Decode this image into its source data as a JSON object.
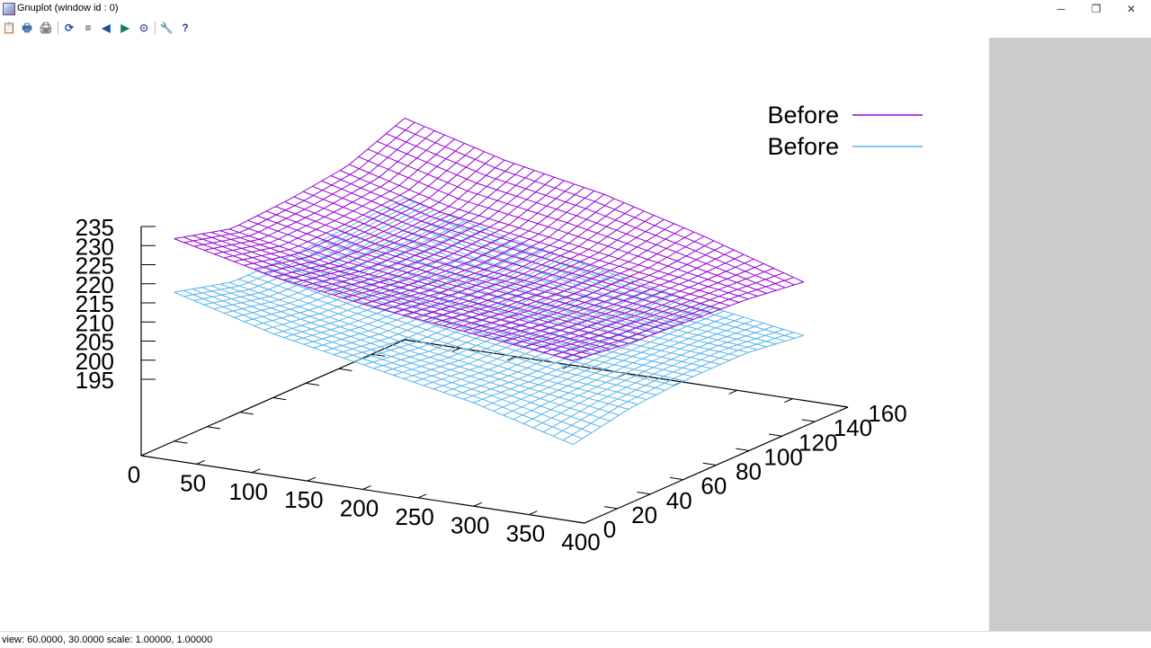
{
  "window": {
    "title": "Gnuplot (window id : 0)",
    "minimize": "─",
    "restore": "❐",
    "close": "✕"
  },
  "toolbar": [
    {
      "icon": "clipboard-icon",
      "glyph": "📋"
    },
    {
      "icon": "print-preview-icon",
      "glyph": "🖶"
    },
    {
      "icon": "print-icon",
      "glyph": "🖨"
    },
    {
      "icon": "replot-icon",
      "glyph": "⟳"
    },
    {
      "icon": "grid-icon",
      "glyph": "≡"
    },
    {
      "icon": "zoom-previous-icon",
      "glyph": "◀"
    },
    {
      "icon": "zoom-next-icon",
      "glyph": "▶"
    },
    {
      "icon": "autoscale-icon",
      "glyph": "⊙"
    },
    {
      "icon": "options-icon",
      "glyph": "🔧"
    },
    {
      "icon": "help-icon",
      "glyph": "?"
    }
  ],
  "status": "view: 60.0000,  30.0000   scale: 1.00000,  1.00000",
  "chart_data": {
    "type": "surface3d",
    "view": {
      "rot_x": 60,
      "rot_z": 30,
      "scale": 1,
      "scale_z": 1
    },
    "xlim": [
      0,
      400
    ],
    "ylim": [
      0,
      160
    ],
    "zlim": [
      175,
      235
    ],
    "xticks": [
      "0",
      "50",
      "100",
      "150",
      "200",
      "250",
      "300",
      "350",
      "400"
    ],
    "yticks": [
      "0",
      "20",
      "40",
      "60",
      "80",
      "100",
      "120",
      "140",
      "160"
    ],
    "zticks": [
      "195",
      "200",
      "205",
      "210",
      "215",
      "220",
      "225",
      "230",
      "235"
    ],
    "legend_position": "top-right",
    "grid_x": [
      0,
      90,
      180,
      270,
      360
    ],
    "grid_y": [
      20,
      55,
      90,
      125,
      160
    ],
    "series": [
      {
        "name": "Before",
        "color": "#9400d3",
        "z": [
          [
            228,
            222,
            218,
            215,
            212
          ],
          [
            224,
            219,
            216,
            213,
            210
          ],
          [
            225,
            219,
            215,
            212,
            209
          ],
          [
            227,
            220,
            216,
            212,
            208
          ],
          [
            233,
            226,
            221,
            214,
            206
          ]
        ]
      },
      {
        "name": "Before",
        "color": "#56b4e9",
        "z": [
          [
            214,
            207,
            202,
            197,
            190
          ],
          [
            210,
            205,
            200,
            196,
            193
          ],
          [
            210,
            204,
            200,
            196,
            194
          ],
          [
            211,
            205,
            200,
            196,
            194
          ],
          [
            212,
            206,
            201,
            196,
            192
          ]
        ]
      }
    ]
  }
}
